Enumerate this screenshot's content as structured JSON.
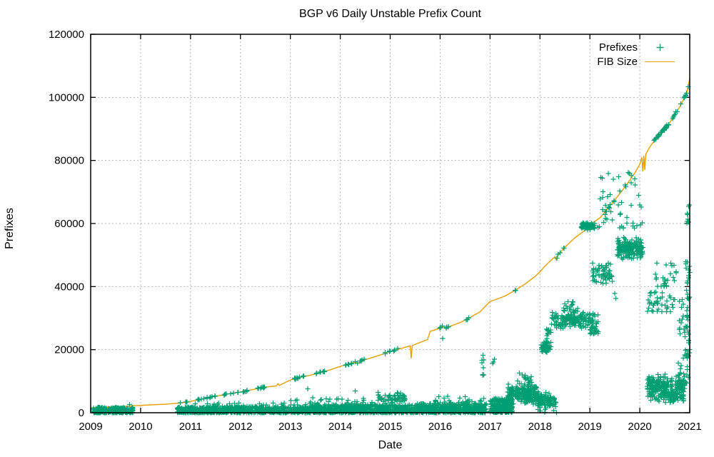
{
  "chart_data": {
    "type": "scatter",
    "title": "BGP v6 Daily Unstable Prefix Count",
    "xlabel": "Date",
    "ylabel": "Prefixes",
    "x_range": [
      2009,
      2021
    ],
    "y_range": [
      0,
      120000
    ],
    "x_ticks": [
      2009,
      2010,
      2011,
      2012,
      2013,
      2014,
      2015,
      2016,
      2017,
      2018,
      2019,
      2020,
      2021
    ],
    "y_ticks": [
      0,
      20000,
      40000,
      60000,
      80000,
      100000,
      120000
    ],
    "grid": true,
    "legend_position": "top-right-inside",
    "legend": [
      {
        "label": "Prefixes",
        "style": "points"
      },
      {
        "label": "FIB Size",
        "style": "line"
      }
    ],
    "colors": {
      "prefixes": "#009e73",
      "fib": "#e69f00",
      "grid": "#b3b3b3",
      "border": "#000000",
      "text": "#000000",
      "background": "#ffffff"
    },
    "fib_line": [
      [
        2009.0,
        1550
      ],
      [
        2009.3,
        1700
      ],
      [
        2009.6,
        1950
      ],
      [
        2009.9,
        2250
      ],
      [
        2010.2,
        2500
      ],
      [
        2010.5,
        2700
      ],
      [
        2010.8,
        3100
      ],
      [
        2011.0,
        3600
      ],
      [
        2011.2,
        4300
      ],
      [
        2011.4,
        4900
      ],
      [
        2011.6,
        5500
      ],
      [
        2011.8,
        6100
      ],
      [
        2012.0,
        6600
      ],
      [
        2012.2,
        7200
      ],
      [
        2012.4,
        7800
      ],
      [
        2012.6,
        8300
      ],
      [
        2012.72,
        8500
      ],
      [
        2012.75,
        9200
      ],
      [
        2012.78,
        8700
      ],
      [
        2012.9,
        9600
      ],
      [
        2013.0,
        10400
      ],
      [
        2013.2,
        11200
      ],
      [
        2013.4,
        11900
      ],
      [
        2013.6,
        12700
      ],
      [
        2013.8,
        13600
      ],
      [
        2014.0,
        14700
      ],
      [
        2014.2,
        15600
      ],
      [
        2014.3,
        16000
      ],
      [
        2014.35,
        15600
      ],
      [
        2014.4,
        16300
      ],
      [
        2014.6,
        17300
      ],
      [
        2014.8,
        18300
      ],
      [
        2015.0,
        19400
      ],
      [
        2015.2,
        20300
      ],
      [
        2015.35,
        21000
      ],
      [
        2015.4,
        21200
      ],
      [
        2015.42,
        17200
      ],
      [
        2015.44,
        21300
      ],
      [
        2015.6,
        22300
      ],
      [
        2015.75,
        23200
      ],
      [
        2015.8,
        25800
      ],
      [
        2015.9,
        26300
      ],
      [
        2016.0,
        26800
      ],
      [
        2016.05,
        27400
      ],
      [
        2016.1,
        26700
      ],
      [
        2016.2,
        27400
      ],
      [
        2016.4,
        28600
      ],
      [
        2016.6,
        30200
      ],
      [
        2016.8,
        32000
      ],
      [
        2017.0,
        35300
      ],
      [
        2017.1,
        35800
      ],
      [
        2017.3,
        37000
      ],
      [
        2017.5,
        38800
      ],
      [
        2017.7,
        40800
      ],
      [
        2017.9,
        43200
      ],
      [
        2018.0,
        44700
      ],
      [
        2018.1,
        46500
      ],
      [
        2018.2,
        48000
      ],
      [
        2018.3,
        49500
      ],
      [
        2018.33,
        48400
      ],
      [
        2018.36,
        50000
      ],
      [
        2018.5,
        52500
      ],
      [
        2018.7,
        55500
      ],
      [
        2018.9,
        57800
      ],
      [
        2019.0,
        59500
      ],
      [
        2019.1,
        60700
      ],
      [
        2019.2,
        61800
      ],
      [
        2019.4,
        65500
      ],
      [
        2019.5,
        67500
      ],
      [
        2019.7,
        71500
      ],
      [
        2019.9,
        76000
      ],
      [
        2020.0,
        78800
      ],
      [
        2020.04,
        81000
      ],
      [
        2020.06,
        76500
      ],
      [
        2020.08,
        81500
      ],
      [
        2020.1,
        77000
      ],
      [
        2020.12,
        82000
      ],
      [
        2020.2,
        84300
      ],
      [
        2020.35,
        87500
      ],
      [
        2020.5,
        90000
      ],
      [
        2020.6,
        92000
      ],
      [
        2020.7,
        94500
      ],
      [
        2020.8,
        97000
      ],
      [
        2020.9,
        100000
      ],
      [
        2020.95,
        102000
      ],
      [
        2021.0,
        106000
      ]
    ],
    "prefix_scatter": {
      "clusters": [
        {
          "x0": 2009.05,
          "x1": 2009.85,
          "v0": 0,
          "v1": 1700,
          "n": 280,
          "mode": "band"
        },
        {
          "x0": 2010.73,
          "x1": 2013.4,
          "v0": 0,
          "v1": 1800,
          "n": 700,
          "mode": "band"
        },
        {
          "x0": 2013.4,
          "x1": 2015.5,
          "v0": 0,
          "v1": 2600,
          "n": 650,
          "mode": "band"
        },
        {
          "x0": 2015.5,
          "x1": 2016.93,
          "v0": 0,
          "v1": 2900,
          "n": 480,
          "mode": "band"
        },
        {
          "x0": 2011.0,
          "x1": 2012.9,
          "v0": 1700,
          "v1": 3100,
          "n": 45,
          "mode": "band"
        },
        {
          "x0": 2013.0,
          "x1": 2014.7,
          "v0": 2500,
          "v1": 4800,
          "n": 35,
          "mode": "band"
        },
        {
          "x0": 2014.75,
          "x1": 2015.3,
          "v0": 2800,
          "v1": 6500,
          "n": 55,
          "mode": "blob"
        },
        {
          "x0": 2015.9,
          "x1": 2016.85,
          "v0": 2800,
          "v1": 5300,
          "n": 30,
          "mode": "band"
        },
        {
          "x0": 2016.83,
          "x1": 2016.88,
          "v0": 500,
          "v1": 20500,
          "n": 13,
          "mode": "band"
        },
        {
          "x0": 2017.0,
          "x1": 2017.45,
          "v0": 100,
          "v1": 4500,
          "n": 200,
          "mode": "band"
        },
        {
          "x0": 2017.35,
          "x1": 2017.98,
          "v0": 2500,
          "v1": 9500,
          "n": 210,
          "mode": "blob"
        },
        {
          "x0": 2017.55,
          "x1": 2017.85,
          "v0": 9000,
          "v1": 12800,
          "n": 22,
          "mode": "band"
        },
        {
          "x0": 2017.95,
          "x1": 2018.32,
          "v0": 300,
          "v1": 7000,
          "n": 90,
          "mode": "blob"
        },
        {
          "x0": 2018.02,
          "x1": 2018.14,
          "v0": 18500,
          "v1": 22500,
          "n": 35,
          "mode": "blob"
        },
        {
          "x0": 2018.12,
          "x1": 2018.22,
          "v0": 20000,
          "v1": 26500,
          "n": 28,
          "mode": "band"
        },
        {
          "x0": 2018.22,
          "x1": 2019.0,
          "v0": 26500,
          "v1": 32500,
          "n": 160,
          "mode": "blob"
        },
        {
          "x0": 2018.45,
          "x1": 2018.78,
          "v0": 32500,
          "v1": 35800,
          "n": 18,
          "mode": "band"
        },
        {
          "x0": 2019.0,
          "x1": 2019.17,
          "v0": 25000,
          "v1": 31500,
          "n": 45,
          "mode": "band"
        },
        {
          "x0": 2018.82,
          "x1": 2019.1,
          "v0": 57800,
          "v1": 60800,
          "n": 60,
          "mode": "blob"
        },
        {
          "x0": 2019.05,
          "x1": 2019.45,
          "v0": 40500,
          "v1": 48000,
          "n": 60,
          "mode": "blob"
        },
        {
          "x0": 2019.55,
          "x1": 2020.06,
          "v0": 48500,
          "v1": 55800,
          "n": 170,
          "mode": "blob"
        },
        {
          "x0": 2019.15,
          "x1": 2020.1,
          "v0": 58500,
          "v1": 76500,
          "n": 50,
          "mode": "band"
        },
        {
          "x0": 2020.15,
          "x1": 2020.7,
          "v0": 32000,
          "v1": 39000,
          "n": 40,
          "mode": "band"
        },
        {
          "x0": 2020.3,
          "x1": 2020.75,
          "v0": 40000,
          "v1": 47500,
          "n": 25,
          "mode": "band"
        },
        {
          "x0": 2020.15,
          "x1": 2020.9,
          "v0": 2800,
          "v1": 12500,
          "n": 280,
          "mode": "blob"
        },
        {
          "x0": 2020.75,
          "x1": 2020.97,
          "v0": 8500,
          "v1": 18000,
          "n": 25,
          "mode": "band"
        },
        {
          "x0": 2020.78,
          "x1": 2020.97,
          "v0": 25000,
          "v1": 36000,
          "n": 25,
          "mode": "band"
        },
        {
          "x0": 2020.9,
          "x1": 2021.0,
          "v0": 18000,
          "v1": 25000,
          "n": 15,
          "mode": "band"
        },
        {
          "x0": 2020.92,
          "x1": 2021.0,
          "v0": 36000,
          "v1": 48500,
          "n": 20,
          "mode": "band"
        },
        {
          "x0": 2020.94,
          "x1": 2021.0,
          "v0": 60000,
          "v1": 66500,
          "n": 8,
          "mode": "band"
        }
      ],
      "on_line_groups": [
        {
          "x0": 2010.75,
          "x1": 2010.95,
          "n": 5,
          "jitter": 300
        },
        {
          "x0": 2011.1,
          "x1": 2011.55,
          "n": 12,
          "jitter": 400
        },
        {
          "x0": 2011.65,
          "x1": 2012.15,
          "n": 14,
          "jitter": 400
        },
        {
          "x0": 2012.3,
          "x1": 2012.55,
          "n": 8,
          "jitter": 400
        },
        {
          "x0": 2013.05,
          "x1": 2013.3,
          "n": 10,
          "jitter": 500
        },
        {
          "x0": 2013.5,
          "x1": 2013.7,
          "n": 8,
          "jitter": 500
        },
        {
          "x0": 2014.1,
          "x1": 2014.5,
          "n": 12,
          "jitter": 500
        },
        {
          "x0": 2014.9,
          "x1": 2015.2,
          "n": 10,
          "jitter": 500
        },
        {
          "x0": 2015.95,
          "x1": 2016.2,
          "n": 7,
          "jitter": 600
        },
        {
          "x0": 2016.5,
          "x1": 2016.62,
          "n": 3,
          "jitter": 600
        },
        {
          "x0": 2017.5,
          "x1": 2017.56,
          "n": 2,
          "jitter": 600
        },
        {
          "x0": 2018.3,
          "x1": 2018.5,
          "n": 5,
          "jitter": 700
        },
        {
          "x0": 2019.3,
          "x1": 2019.55,
          "n": 8,
          "jitter": 800
        },
        {
          "x0": 2020.28,
          "x1": 2020.58,
          "n": 32,
          "jitter": 900
        },
        {
          "x0": 2020.6,
          "x1": 2020.75,
          "n": 6,
          "jitter": 800
        },
        {
          "x0": 2020.82,
          "x1": 2020.97,
          "n": 8,
          "jitter": 800
        }
      ],
      "points": [
        [
          2013.35,
          7600
        ],
        [
          2013.45,
          4800
        ],
        [
          2009.78,
          2600
        ],
        [
          2014.3,
          6900
        ],
        [
          2017.05,
          15600
        ],
        [
          2017.07,
          16100
        ],
        [
          2017.09,
          17000
        ],
        [
          2018.33,
          0
        ],
        [
          2018.1,
          150
        ],
        [
          2016.05,
          23600
        ],
        [
          2019.5,
          37800
        ],
        [
          2019.52,
          36200
        ],
        [
          2020.99,
          19000
        ],
        [
          2021.0,
          20000
        ]
      ]
    }
  }
}
